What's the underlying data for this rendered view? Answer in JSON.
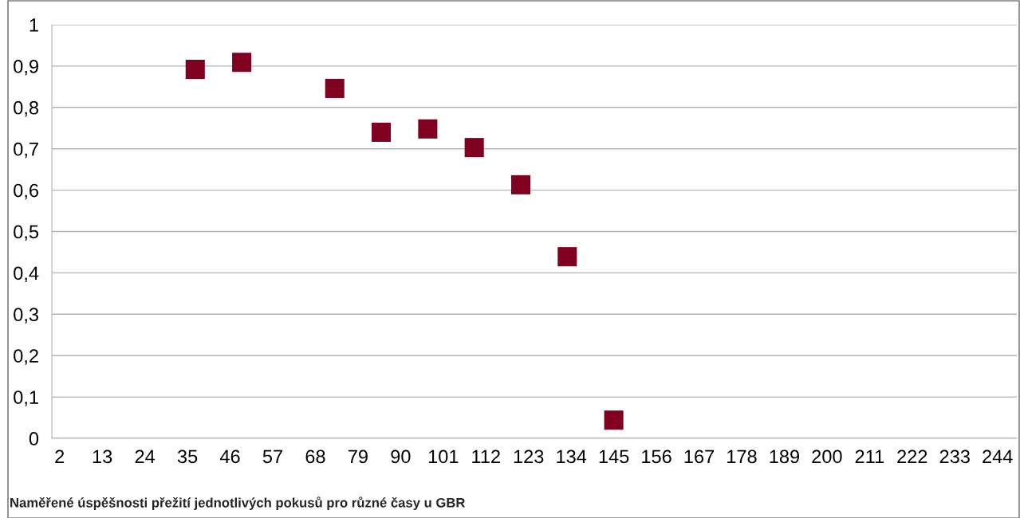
{
  "chart_data": {
    "type": "scatter",
    "title": "Naměřené úspěšnosti přežití jednotlivých pokusů pro různé časy u GBR",
    "x": [
      37,
      49,
      73,
      85,
      97,
      109,
      121,
      133,
      145
    ],
    "series": [
      {
        "color": "#800020",
        "values": [
          0.892,
          0.909,
          0.846,
          0.74,
          0.748,
          0.703,
          0.613,
          0.439,
          0.044
        ]
      }
    ],
    "marker": "square",
    "grid": "y",
    "legend": false,
    "xlim": [
      0,
      249
    ],
    "xticks": [
      2,
      13,
      24,
      35,
      46,
      57,
      68,
      79,
      90,
      101,
      112,
      123,
      134,
      145,
      156,
      167,
      178,
      189,
      200,
      211,
      222,
      233,
      244
    ],
    "ylim": [
      0,
      1
    ],
    "yticks": [
      0,
      {
        "value": 0.1,
        "label": "0,1"
      },
      {
        "value": 0.2,
        "label": "0,2"
      },
      {
        "value": 0.3,
        "label": "0,3"
      },
      {
        "value": 0.4,
        "label": "0,4"
      },
      {
        "value": 0.5,
        "label": "0,5"
      },
      {
        "value": 0.6,
        "label": "0,6"
      },
      {
        "value": 0.7,
        "label": "0,7"
      },
      {
        "value": 0.8,
        "label": "0,8"
      },
      {
        "value": 0.9,
        "label": "0,9"
      },
      1
    ]
  }
}
